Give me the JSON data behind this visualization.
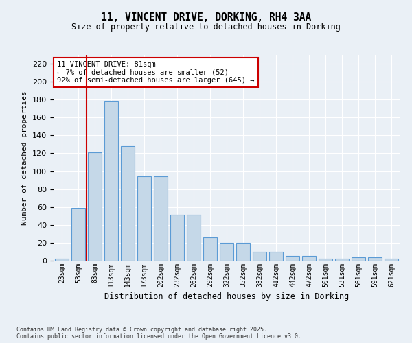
{
  "title1": "11, VINCENT DRIVE, DORKING, RH4 3AA",
  "title2": "Size of property relative to detached houses in Dorking",
  "xlabel": "Distribution of detached houses by size in Dorking",
  "ylabel": "Number of detached properties",
  "bar_labels": [
    "23sqm",
    "53sqm",
    "83sqm",
    "113sqm",
    "143sqm",
    "173sqm",
    "202sqm",
    "232sqm",
    "262sqm",
    "292sqm",
    "322sqm",
    "352sqm",
    "382sqm",
    "412sqm",
    "442sqm",
    "472sqm",
    "501sqm",
    "531sqm",
    "561sqm",
    "591sqm",
    "621sqm"
  ],
  "bar_heights": [
    2,
    59,
    121,
    179,
    128,
    94,
    94,
    51,
    51,
    26,
    20,
    20,
    10,
    10,
    5,
    5,
    2,
    2,
    4,
    4,
    2
  ],
  "bar_color": "#c5d8e8",
  "bar_edge_color": "#5b9bd5",
  "vline_color": "#cc0000",
  "annotation_text": "11 VINCENT DRIVE: 81sqm\n← 7% of detached houses are smaller (52)\n92% of semi-detached houses are larger (645) →",
  "annotation_box_color": "#ffffff",
  "annotation_box_edge": "#cc0000",
  "ylim": [
    0,
    230
  ],
  "yticks": [
    0,
    20,
    40,
    60,
    80,
    100,
    120,
    140,
    160,
    180,
    200,
    220
  ],
  "footer": "Contains HM Land Registry data © Crown copyright and database right 2025.\nContains public sector information licensed under the Open Government Licence v3.0.",
  "bg_color": "#eaf0f6",
  "plot_bg_color": "#eaf0f6"
}
